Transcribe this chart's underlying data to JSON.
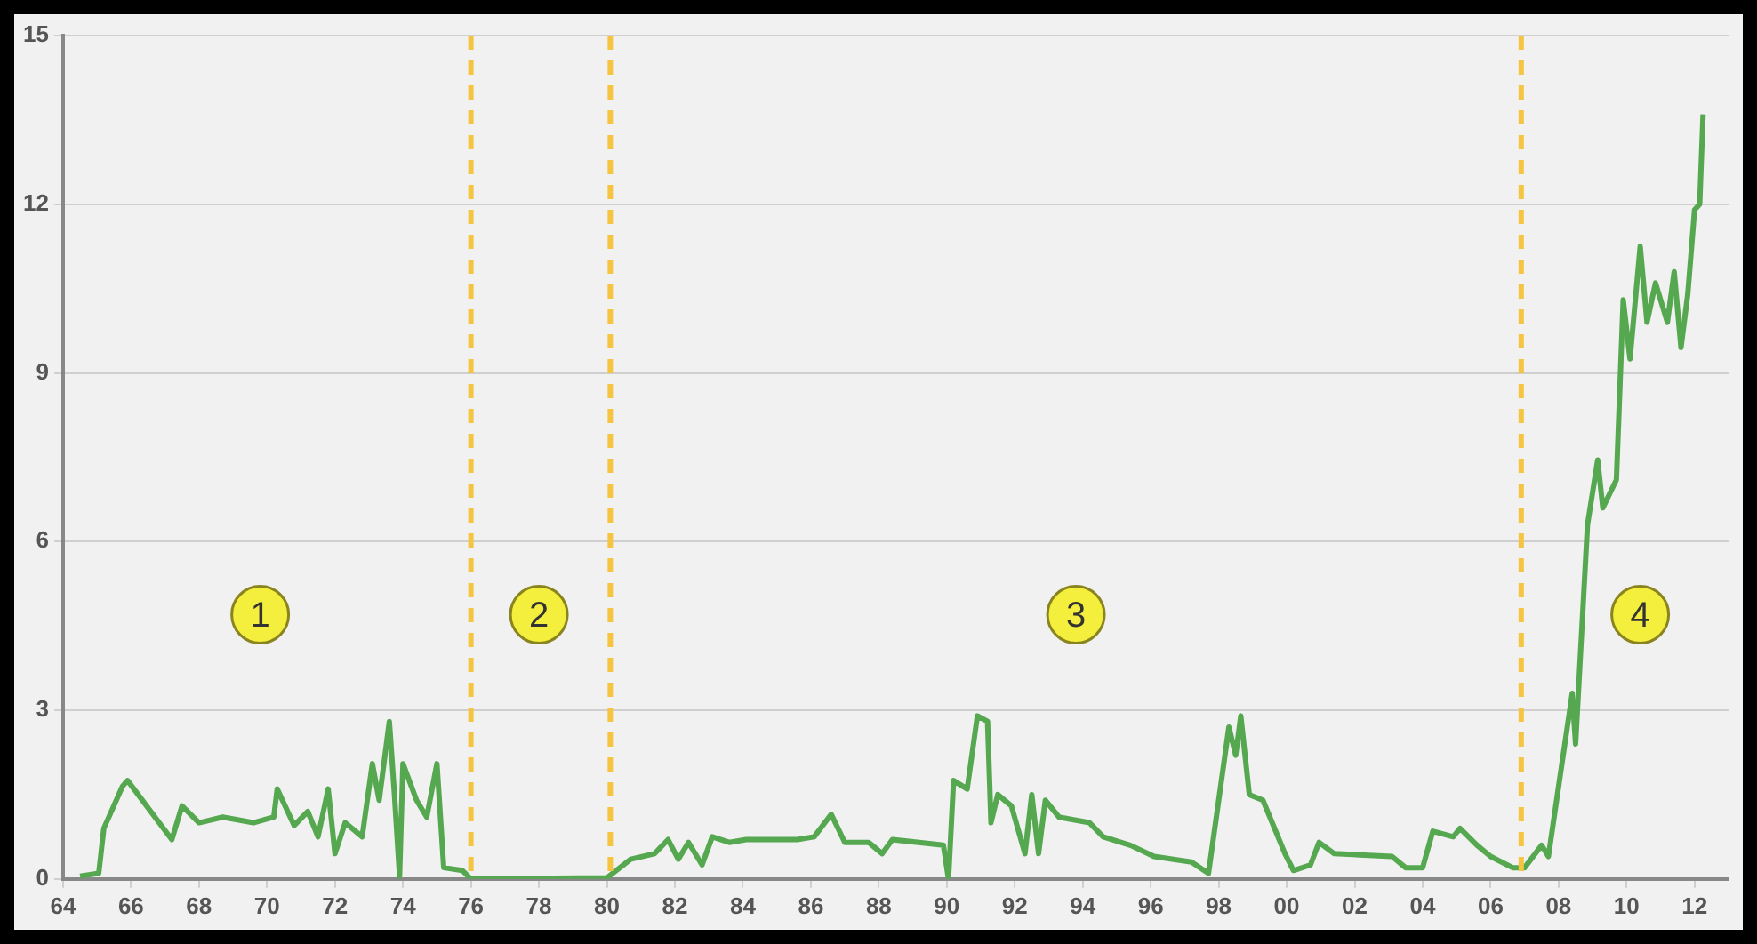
{
  "chart_data": {
    "type": "line",
    "x": [
      1964.5,
      1965.05,
      1965.2,
      1965.75,
      1965.9,
      1967.2,
      1967.5,
      1968,
      1968.7,
      1969.6,
      1970.2,
      1970.3,
      1970.8,
      1971.2,
      1971.5,
      1971.8,
      1972,
      1972.3,
      1972.8,
      1973.1,
      1973.3,
      1973.6,
      1973.75,
      1973.9,
      1974,
      1974.4,
      1974.7,
      1975,
      1975.2,
      1975.75,
      1976,
      1980,
      1980.7,
      1981.4,
      1981.8,
      1982.1,
      1982.4,
      1982.8,
      1983.1,
      1983.6,
      1984.1,
      1985.6,
      1986.1,
      1986.6,
      1987,
      1987.7,
      1988.1,
      1988.4,
      1989.9,
      1990.05,
      1990.2,
      1990.6,
      1990.9,
      1991.2,
      1991.3,
      1991.5,
      1991.9,
      1992.3,
      1992.5,
      1992.7,
      1992.9,
      1993.3,
      1994.2,
      1994.6,
      1995.4,
      1996.1,
      1997.2,
      1997.7,
      1998.3,
      1998.5,
      1998.65,
      1998.9,
      1999.3,
      1999.95,
      2000.2,
      2000.7,
      2000.95,
      2001.4,
      2003.1,
      2003.5,
      2004,
      2004.3,
      2004.9,
      2005.1,
      2005.6,
      2006,
      2006.65,
      2007,
      2007.5,
      2007.7,
      2008.05,
      2008.4,
      2008.5,
      2008.85,
      2009.15,
      2009.3,
      2009.7,
      2009.9,
      2010.1,
      2010.4,
      2010.6,
      2010.85,
      2011.2,
      2011.4,
      2011.6,
      2011.8,
      2012,
      2012.15,
      2012.25
    ],
    "series": [
      {
        "color": "#55a84f",
        "values": [
          0.05,
          0.1,
          0.9,
          1.65,
          1.75,
          0.7,
          1.3,
          1.0,
          1.1,
          1.0,
          1.1,
          1.6,
          0.95,
          1.2,
          0.75,
          1.6,
          0.45,
          1.0,
          0.75,
          2.05,
          1.4,
          2.8,
          1.5,
          0.05,
          2.05,
          1.4,
          1.1,
          2.05,
          0.2,
          0.15,
          0.0,
          0.02,
          0.35,
          0.45,
          0.7,
          0.35,
          0.65,
          0.25,
          0.75,
          0.65,
          0.7,
          0.7,
          0.75,
          1.15,
          0.65,
          0.65,
          0.45,
          0.7,
          0.6,
          0.0,
          1.75,
          1.6,
          2.9,
          2.8,
          1.0,
          1.5,
          1.3,
          0.45,
          1.5,
          0.45,
          1.4,
          1.1,
          1.0,
          0.75,
          0.6,
          0.4,
          0.3,
          0.1,
          2.7,
          2.2,
          2.9,
          1.5,
          1.4,
          0.45,
          0.15,
          0.25,
          0.65,
          0.45,
          0.4,
          0.2,
          0.2,
          0.85,
          0.75,
          0.9,
          0.6,
          0.4,
          0.2,
          0.2,
          0.6,
          0.4,
          1.85,
          3.3,
          2.4,
          6.3,
          7.45,
          6.6,
          7.1,
          10.3,
          9.25,
          11.25,
          9.9,
          10.6,
          9.9,
          10.8,
          9.45,
          10.4,
          11.9,
          12.0,
          13.6
        ]
      }
    ],
    "xlim": [
      1964,
      2013
    ],
    "xticks": [
      {
        "value": 1964,
        "label": "64"
      },
      {
        "value": 1966,
        "label": "66"
      },
      {
        "value": 1968,
        "label": "68"
      },
      {
        "value": 1970,
        "label": "70"
      },
      {
        "value": 1972,
        "label": "72"
      },
      {
        "value": 1974,
        "label": "74"
      },
      {
        "value": 1976,
        "label": "76"
      },
      {
        "value": 1978,
        "label": "78"
      },
      {
        "value": 1980,
        "label": "80"
      },
      {
        "value": 1982,
        "label": "82"
      },
      {
        "value": 1984,
        "label": "84"
      },
      {
        "value": 1986,
        "label": "86"
      },
      {
        "value": 1988,
        "label": "88"
      },
      {
        "value": 1990,
        "label": "90"
      },
      {
        "value": 1992,
        "label": "92"
      },
      {
        "value": 1994,
        "label": "94"
      },
      {
        "value": 1996,
        "label": "96"
      },
      {
        "value": 1998,
        "label": "98"
      },
      {
        "value": 2000,
        "label": "00"
      },
      {
        "value": 2002,
        "label": "02"
      },
      {
        "value": 2004,
        "label": "04"
      },
      {
        "value": 2006,
        "label": "06"
      },
      {
        "value": 2008,
        "label": "08"
      },
      {
        "value": 2010,
        "label": "10"
      },
      {
        "value": 2012,
        "label": "12"
      }
    ],
    "ylim": [
      0,
      15
    ],
    "yticks": [
      0,
      3,
      6,
      9,
      12,
      15
    ],
    "grid": "y",
    "legend": false,
    "marker": "none",
    "line_style": "solid",
    "ref_lines": [
      {
        "axis": "x",
        "value": 1976,
        "color": "#f5c542",
        "line_style": "dashed"
      },
      {
        "axis": "x",
        "value": 1980.1,
        "color": "#f5c542",
        "line_style": "dashed"
      },
      {
        "axis": "x",
        "value": 2006.9,
        "color": "#f5c542",
        "line_style": "dashed"
      }
    ],
    "annotations": [
      {
        "text": "1",
        "x": 1969.8,
        "y": 4.7
      },
      {
        "text": "2",
        "x": 1978,
        "y": 4.7
      },
      {
        "text": "3",
        "x": 1993.8,
        "y": 4.7
      },
      {
        "text": "4",
        "x": 2010.4,
        "y": 4.7
      }
    ]
  }
}
